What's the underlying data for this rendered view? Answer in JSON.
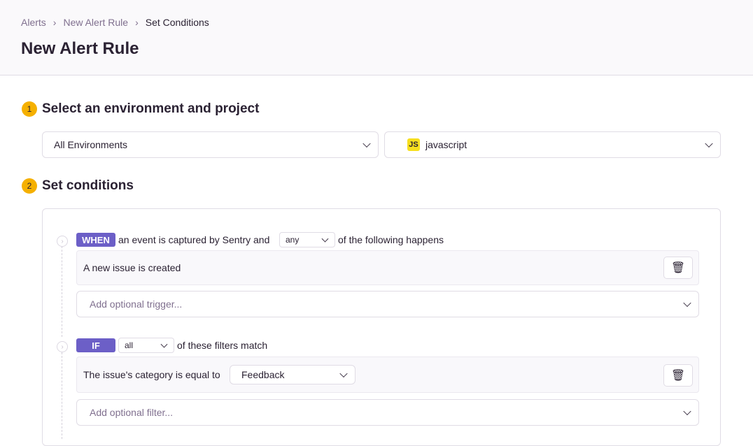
{
  "breadcrumb": [
    "Alerts",
    "New Alert Rule",
    "Set Conditions"
  ],
  "title": "New Alert Rule",
  "step1": {
    "number": "1",
    "title": "Select an environment and project",
    "environment": "All Environments",
    "project": "javascript",
    "project_icon": "JS"
  },
  "step2": {
    "number": "2",
    "title": "Set conditions"
  },
  "when": {
    "badge": "WHEN",
    "text_before": "an event is captured by Sentry and",
    "match": "any",
    "text_after": "of the following happens",
    "trigger": "A new issue is created",
    "add_placeholder": "Add optional trigger..."
  },
  "if": {
    "badge": "IF",
    "match": "all",
    "text_after": "of these filters match",
    "filter_label": "The issue's category is equal to",
    "filter_value": "Feedback",
    "add_placeholder": "Add optional filter..."
  },
  "colors": {
    "accent": "#6c5fc7",
    "step": "#f5b000"
  }
}
